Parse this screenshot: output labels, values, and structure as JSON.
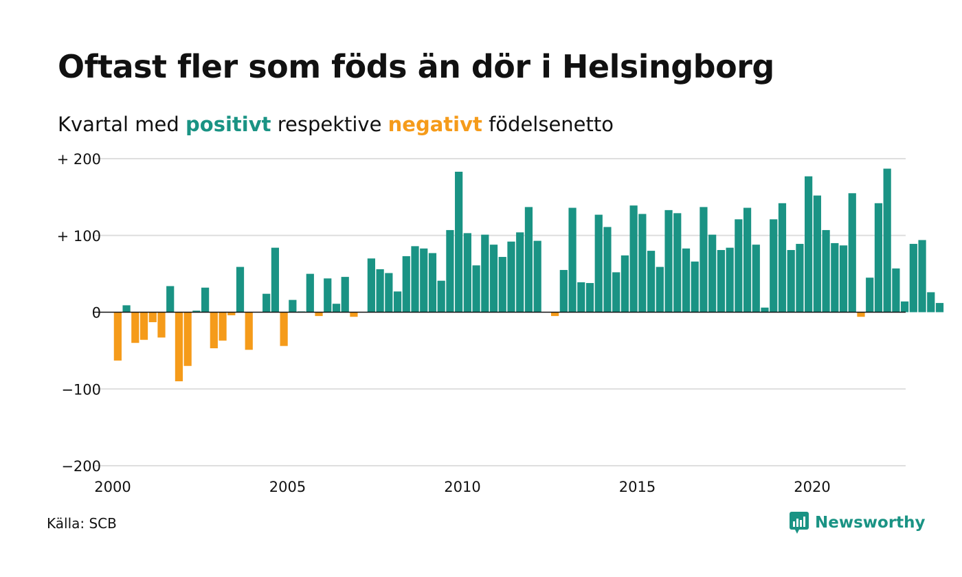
{
  "title": "Oftast fler som föds än dör i Helsingborg",
  "subtitle": {
    "prefix": "Kvartal med ",
    "positive_word": "positivt",
    "middle": " respektive ",
    "negative_word": "negativt",
    "suffix": " födelsenetto"
  },
  "source": "Källa: SCB",
  "brand": {
    "name": "Newsworthy",
    "icon": "newsworthy-logo-icon"
  },
  "colors": {
    "positive": "#1a9384",
    "negative": "#f59b1a",
    "grid": "#dedede",
    "text": "#111111"
  },
  "chart_data": {
    "type": "bar",
    "x_start_year": 2000,
    "x_step": "quarter",
    "ylim": [
      -200,
      200
    ],
    "y_ticks": [
      200,
      100,
      0,
      -100,
      -200
    ],
    "y_tick_labels": [
      "+ 200",
      "+ 100",
      "0",
      "−100",
      "−200"
    ],
    "x_ticks": [
      2000,
      2005,
      2010,
      2015,
      2020
    ],
    "grid": true,
    "values": [
      -63,
      9,
      -40,
      -36,
      -13,
      -33,
      34,
      -90,
      -70,
      2,
      32,
      -47,
      -37,
      -4,
      59,
      -49,
      0,
      24,
      84,
      -44,
      16,
      1,
      50,
      -5,
      44,
      11,
      46,
      -6,
      0,
      70,
      56,
      51,
      27,
      73,
      86,
      83,
      77,
      41,
      107,
      183,
      103,
      61,
      101,
      88,
      72,
      92,
      104,
      137,
      93,
      0,
      -5,
      55,
      136,
      39,
      38,
      127,
      111,
      52,
      74,
      139,
      128,
      80,
      59,
      133,
      129,
      83,
      66,
      137,
      101,
      81,
      84,
      121,
      136,
      88,
      6,
      121,
      142,
      81,
      89,
      177,
      152,
      107,
      90,
      87,
      155,
      -6,
      45,
      142,
      187,
      57,
      14,
      89,
      94,
      26,
      12
    ]
  }
}
